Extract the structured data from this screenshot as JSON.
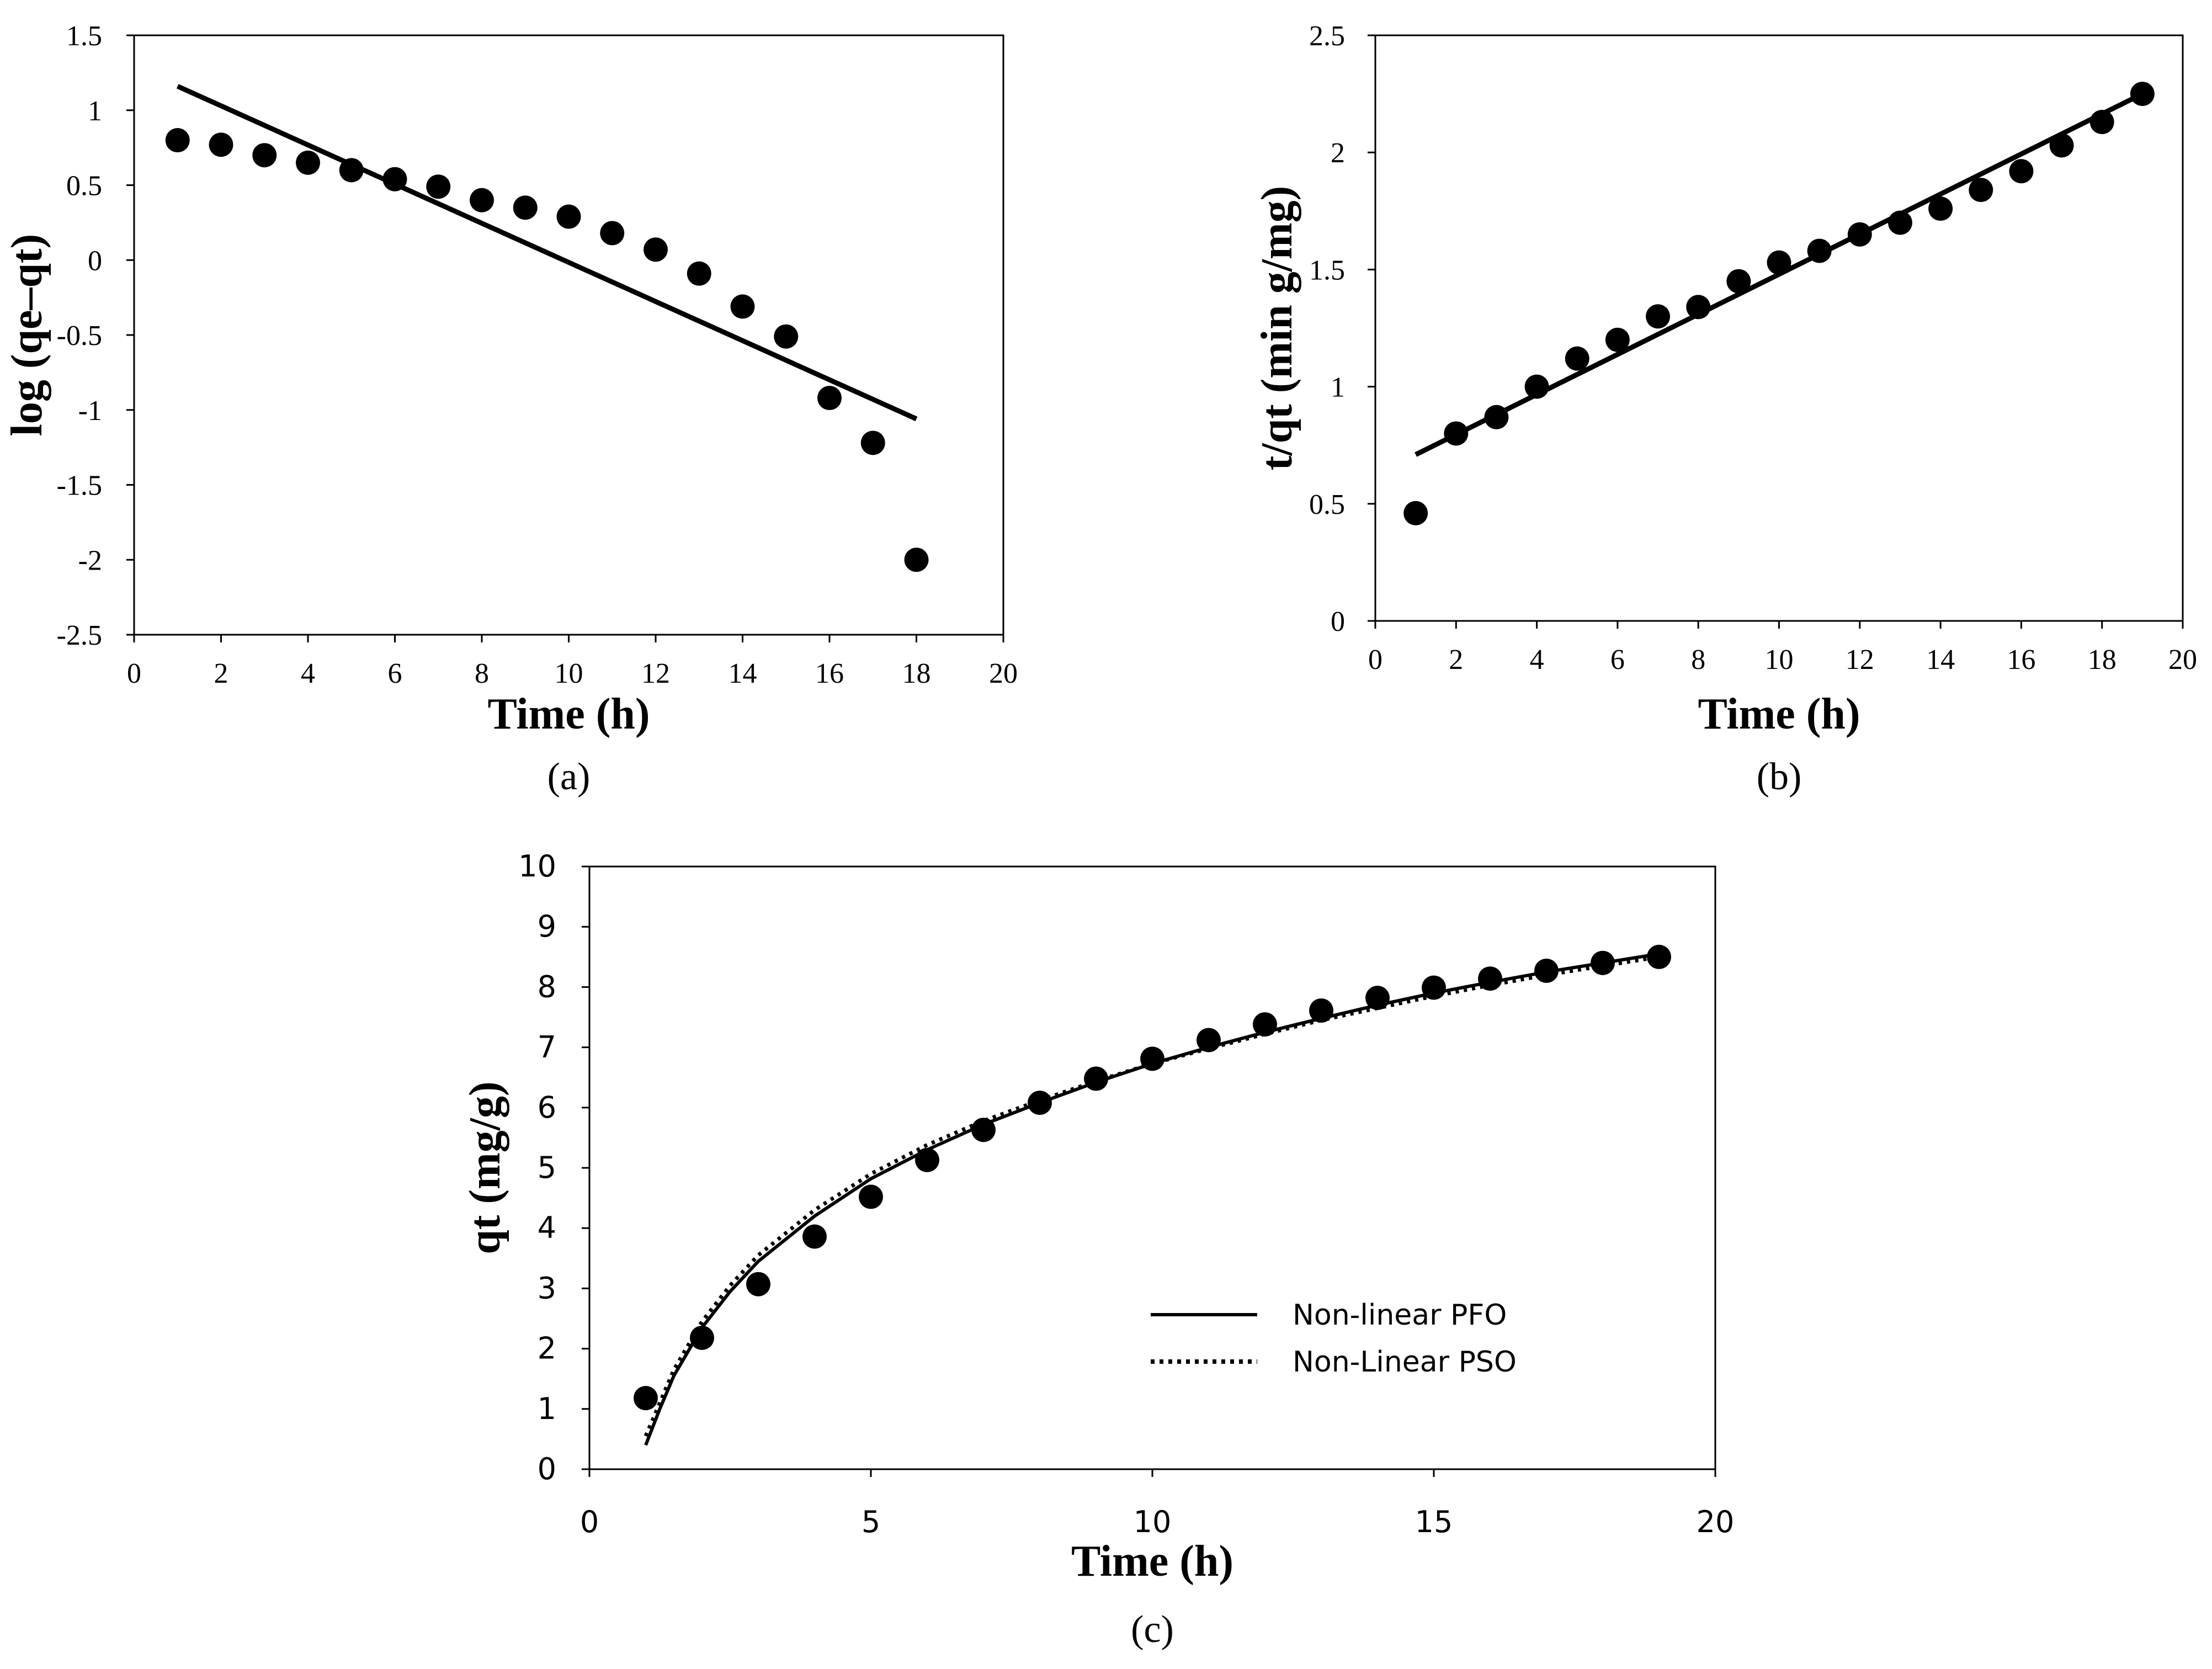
{
  "chart_data": [
    {
      "id": "a",
      "type": "scatter",
      "panel_label": "(a)",
      "xlabel": "Time (h)",
      "ylabel": "log (qe–qt)",
      "xlim": [
        0,
        20
      ],
      "ylim": [
        -2.5,
        1.5
      ],
      "xticks": [
        0,
        2,
        4,
        6,
        8,
        10,
        12,
        14,
        16,
        18,
        20
      ],
      "yticks": [
        -2.5,
        -2,
        -1.5,
        -1,
        -0.5,
        0,
        0.5,
        1,
        1.5
      ],
      "ytick_labels": [
        "-2.5",
        "-2",
        "-1.5",
        "-1",
        "-0.5",
        "0",
        "0.5",
        "1",
        "1.5"
      ],
      "points": {
        "x": [
          1,
          2,
          3,
          4,
          5,
          6,
          7,
          8,
          9,
          10,
          11,
          12,
          13,
          14,
          15,
          16,
          17,
          18
        ],
        "y": [
          0.8,
          0.77,
          0.7,
          0.65,
          0.6,
          0.54,
          0.49,
          0.4,
          0.35,
          0.29,
          0.18,
          0.07,
          -0.09,
          -0.31,
          -0.51,
          -0.92,
          -1.22,
          -2.0
        ]
      },
      "fit_line": {
        "x": [
          1,
          18
        ],
        "y": [
          1.16,
          -1.06
        ]
      }
    },
    {
      "id": "b",
      "type": "scatter",
      "panel_label": "(b)",
      "xlabel": "Time (h)",
      "ylabel": "t/qt (min g/mg)",
      "xlim": [
        0,
        20
      ],
      "ylim": [
        0,
        2.5
      ],
      "xticks": [
        0,
        2,
        4,
        6,
        8,
        10,
        12,
        14,
        16,
        18,
        20
      ],
      "yticks": [
        0,
        0.5,
        1,
        1.5,
        2,
        2.5
      ],
      "ytick_labels": [
        "0",
        "0.5",
        "1",
        "1.5",
        "2",
        "2.5"
      ],
      "points": {
        "x": [
          1,
          2,
          3,
          4,
          5,
          6,
          7,
          8,
          9,
          10,
          11,
          12,
          13,
          14,
          15,
          16,
          17,
          18,
          19
        ],
        "y": [
          0.46,
          0.8,
          0.87,
          1.0,
          1.12,
          1.2,
          1.3,
          1.34,
          1.45,
          1.53,
          1.58,
          1.65,
          1.7,
          1.76,
          1.84,
          1.92,
          2.03,
          2.13,
          2.25
        ]
      },
      "fit_line": {
        "x": [
          1,
          19
        ],
        "y": [
          0.71,
          2.25
        ]
      }
    },
    {
      "id": "c",
      "type": "scatter",
      "panel_label": "(c)",
      "xlabel": "Time (h)",
      "ylabel": "qt (mg/g)",
      "xlim": [
        0,
        20
      ],
      "ylim": [
        0,
        10
      ],
      "xticks": [
        0,
        5,
        10,
        15,
        20
      ],
      "yticks": [
        0,
        1,
        2,
        3,
        4,
        5,
        6,
        7,
        8,
        9,
        10
      ],
      "ytick_labels": [
        "0",
        "1",
        "2",
        "3",
        "4",
        "5",
        "6",
        "7",
        "8",
        "9",
        "10"
      ],
      "points": {
        "x": [
          1,
          2,
          3,
          4,
          5,
          6,
          7,
          8,
          9,
          10,
          11,
          12,
          13,
          14,
          15,
          16,
          17,
          18,
          19
        ],
        "y": [
          1.18,
          2.18,
          3.07,
          3.86,
          4.52,
          5.13,
          5.63,
          6.08,
          6.48,
          6.81,
          7.12,
          7.38,
          7.61,
          7.82,
          7.99,
          8.14,
          8.27,
          8.4,
          8.5
        ]
      },
      "series": [
        {
          "name": "Non-linear PFO",
          "style": "solid",
          "x": [
            1,
            1.25,
            1.5,
            2,
            2.5,
            3,
            4,
            5,
            6,
            7,
            8,
            9,
            10,
            11,
            12,
            13,
            14,
            15,
            16,
            17,
            18,
            19
          ],
          "y": [
            0.4,
            1.0,
            1.55,
            2.35,
            2.95,
            3.45,
            4.2,
            4.82,
            5.3,
            5.72,
            6.08,
            6.42,
            6.73,
            7.0,
            7.25,
            7.48,
            7.7,
            7.9,
            8.08,
            8.25,
            8.4,
            8.55
          ]
        },
        {
          "name": "Non-Linear PSO",
          "style": "dotted",
          "x": [
            1,
            1.25,
            1.5,
            2,
            2.5,
            3,
            4,
            5,
            6,
            7,
            8,
            9,
            10,
            11,
            12,
            13,
            14,
            15,
            16,
            17,
            18,
            19
          ],
          "y": [
            0.55,
            1.1,
            1.65,
            2.45,
            3.05,
            3.55,
            4.3,
            4.9,
            5.38,
            5.78,
            6.12,
            6.44,
            6.73,
            6.98,
            7.22,
            7.45,
            7.65,
            7.85,
            8.03,
            8.2,
            8.35,
            8.5
          ]
        }
      ],
      "legend": "center-right"
    }
  ]
}
